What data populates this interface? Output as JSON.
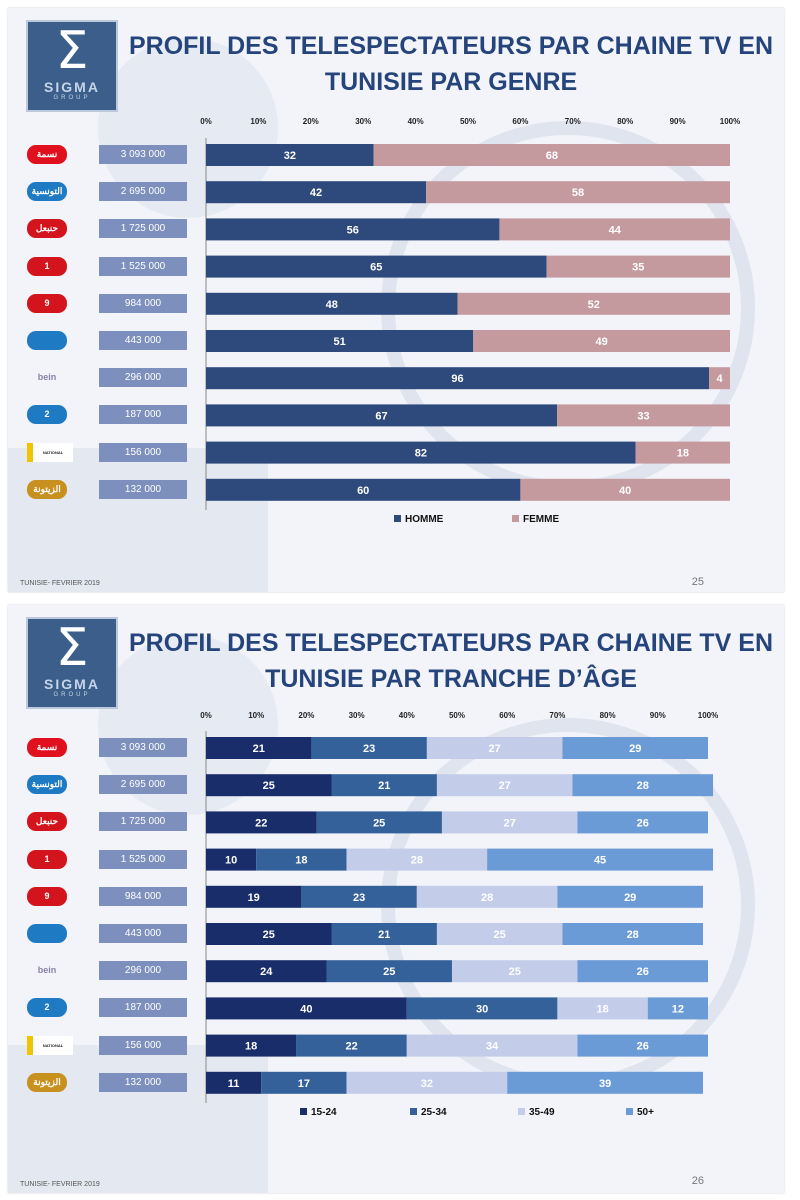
{
  "channels": [
    {
      "name": "نسمة",
      "icon": "nessma-logo",
      "audience": "3 093 000",
      "color": "#e0101e"
    },
    {
      "name": "التونسية",
      "icon": "attounissia-logo",
      "audience": "2 695 000",
      "color": "#1f7ac4"
    },
    {
      "name": "حنبعل",
      "icon": "hannibal-logo",
      "audience": "1 725 000",
      "color": "#d4141c"
    },
    {
      "name": "1",
      "icon": "wataniya1-logo",
      "audience": "1 525 000",
      "color": "#d4141c"
    },
    {
      "name": "9",
      "icon": "tunisna9-logo",
      "audience": "984 000",
      "color": "#d4141c"
    },
    {
      "name": "",
      "icon": "elhiwar-logo",
      "audience": "443 000",
      "color": "#1f7ac4"
    },
    {
      "name": "bein",
      "icon": "bein-logo",
      "audience": "296 000",
      "color": "#8a7fa8"
    },
    {
      "name": "2",
      "icon": "wataniya2-logo",
      "audience": "187 000",
      "color": "#1f7ac4"
    },
    {
      "name": "NATIONAL GEOGRAPHIC",
      "icon": "natgeo-logo",
      "audience": "156 000",
      "color": "#f0c400"
    },
    {
      "name": "الزيتونة",
      "icon": "zitouna-logo",
      "audience": "132 000",
      "color": "#c8901e"
    }
  ],
  "slide1": {
    "title": "PROFIL DES TELESPECTATEURS PAR CHAINE TV EN TUNISIE PAR GENRE",
    "footer": "TUNISIE- FEVRIER 2019",
    "page": "25",
    "logo": {
      "mark": "Σ",
      "name": "SIGMA",
      "sub": "GROUP"
    }
  },
  "slide2": {
    "title": "PROFIL DES TELESPECTATEURS PAR CHAINE TV EN TUNISIE PAR TRANCHE D’ÂGE",
    "footer": "TUNISIE- FEVRIER 2019",
    "page": "26",
    "logo": {
      "mark": "Σ",
      "name": "SIGMA",
      "sub": "GROUP"
    }
  },
  "chart_data": [
    {
      "type": "bar",
      "stacked": true,
      "orientation": "horizontal",
      "title": "PROFIL DES TELESPECTATEURS PAR CHAINE TV EN TUNISIE PAR GENRE",
      "categories": [
        "3 093 000",
        "2 695 000",
        "1 725 000",
        "1 525 000",
        "984 000",
        "443 000",
        "296 000",
        "187 000",
        "156 000",
        "132 000"
      ],
      "xlim": [
        0,
        100
      ],
      "xticks": [
        "0%",
        "10%",
        "20%",
        "30%",
        "40%",
        "50%",
        "60%",
        "70%",
        "80%",
        "90%",
        "100%"
      ],
      "grid": false,
      "legend_position": "bottom",
      "series": [
        {
          "name": "HOMME",
          "color": "#2e4a7c",
          "label_color": "#ffffff",
          "values": [
            32,
            42,
            56,
            65,
            48,
            51,
            96,
            67,
            82,
            60
          ]
        },
        {
          "name": "FEMME",
          "color": "#c49a9f",
          "label_color": "#ffffff",
          "values": [
            68,
            58,
            44,
            35,
            52,
            49,
            4,
            33,
            18,
            40
          ]
        }
      ]
    },
    {
      "type": "bar",
      "stacked": true,
      "orientation": "horizontal",
      "title": "PROFIL DES TELESPECTATEURS PAR CHAINE TV EN TUNISIE PAR TRANCHE D’ÂGE",
      "categories": [
        "3 093 000",
        "2 695 000",
        "1 725 000",
        "1 525 000",
        "984 000",
        "443 000",
        "296 000",
        "187 000",
        "156 000",
        "132 000"
      ],
      "xlim": [
        0,
        100
      ],
      "xticks": [
        "0%",
        "10%",
        "20%",
        "30%",
        "40%",
        "50%",
        "60%",
        "70%",
        "80%",
        "90%",
        "100%"
      ],
      "grid": false,
      "legend_position": "bottom",
      "series": [
        {
          "name": "15-24",
          "color": "#1a2d6b",
          "label_color": "#ffffff",
          "values": [
            21,
            25,
            22,
            10,
            19,
            25,
            24,
            40,
            18,
            11
          ]
        },
        {
          "name": "25-34",
          "color": "#35619a",
          "label_color": "#ffffff",
          "values": [
            23,
            21,
            25,
            18,
            23,
            21,
            25,
            30,
            22,
            17
          ]
        },
        {
          "name": "35-49",
          "color": "#c3cde9",
          "label_color": "#ffffff",
          "values": [
            27,
            27,
            27,
            28,
            28,
            25,
            25,
            18,
            34,
            32
          ]
        },
        {
          "name": "50+",
          "color": "#6b9bd6",
          "label_color": "#ffffff",
          "values": [
            29,
            28,
            26,
            45,
            29,
            28,
            26,
            12,
            26,
            39
          ]
        }
      ]
    }
  ]
}
